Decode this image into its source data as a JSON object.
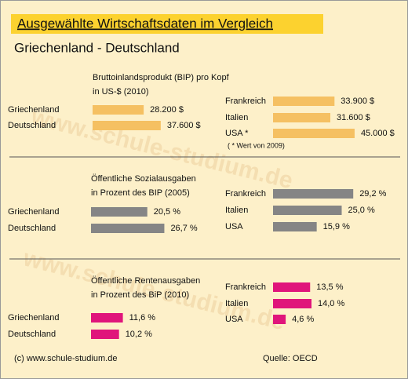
{
  "title": "Ausgewählte Wirtschaftsdaten im Vergleich",
  "subtitle": "Griechenland - Deutschland",
  "watermark": "www.schule-studium.de",
  "footer": {
    "copyright": "(c) www.schule-studium.de",
    "source": "Quelle: OECD"
  },
  "chart_data": [
    {
      "type": "bar",
      "orientation": "horizontal",
      "title": "Bruttoinlandsprodukt (BIP) pro Kopf",
      "subtitle": "in US-$ (2010)",
      "categories": [
        "Griechenland",
        "Deutschland",
        "Frankreich",
        "Italien",
        "USA *"
      ],
      "values": [
        28200,
        37600,
        33900,
        31600,
        45000
      ],
      "value_labels": [
        "28.200 $",
        "37.600 $",
        "33.900 $",
        "31.600 $",
        "45.000 $"
      ],
      "color": "#f5c062",
      "note": "( * Wert von 2009)"
    },
    {
      "type": "bar",
      "orientation": "horizontal",
      "title": "Öffentliche Sozialausgaben",
      "subtitle": "in Prozent des BIP (2005)",
      "categories": [
        "Griechenland",
        "Deutschland",
        "Frankreich",
        "Italien",
        "USA"
      ],
      "values": [
        20.5,
        26.7,
        29.2,
        25.0,
        15.9
      ],
      "value_labels": [
        "20,5 %",
        "26,7 %",
        "29,2 %",
        "25,0 %",
        "15,9 %"
      ],
      "color": "#858585"
    },
    {
      "type": "bar",
      "orientation": "horizontal",
      "title": "Öffentliche Rentenausgaben",
      "subtitle": "in Prozent des BiP (2010)",
      "categories": [
        "Griechenland",
        "Deutschland",
        "Frankreich",
        "Italien",
        "USA"
      ],
      "values": [
        11.6,
        10.2,
        13.5,
        14.0,
        4.6
      ],
      "value_labels": [
        "11,6 %",
        "10,2 %",
        "13,5 %",
        "14,0 %",
        "4,6 %"
      ],
      "color": "#e0157b"
    }
  ]
}
